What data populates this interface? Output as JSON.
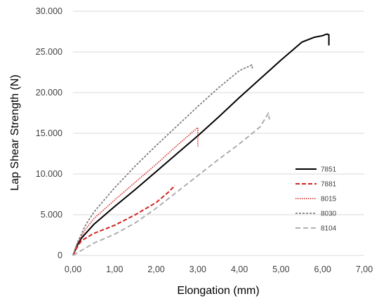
{
  "chart_data": {
    "type": "line",
    "title": "",
    "xlabel": "Elongation (mm)",
    "ylabel": "Lap Shear Strength (N)",
    "xlim": [
      0,
      7
    ],
    "ylim": [
      0,
      30000
    ],
    "x_ticks": [
      "0,00",
      "1,00",
      "2,00",
      "3,00",
      "4,00",
      "5,00",
      "6,00",
      "7,00"
    ],
    "y_ticks": [
      "0",
      "5.000",
      "10.000",
      "15.000",
      "20.000",
      "25.000",
      "30.000"
    ],
    "grid": "horizontal",
    "legend_position": "lower-right",
    "series": [
      {
        "name": "7851",
        "color": "#000000",
        "dash": "solid",
        "points": [
          [
            0,
            0
          ],
          [
            0.1,
            1200
          ],
          [
            0.2,
            2100
          ],
          [
            0.5,
            3800
          ],
          [
            1.0,
            6000
          ],
          [
            1.5,
            8100
          ],
          [
            2.0,
            10300
          ],
          [
            2.5,
            12500
          ],
          [
            3.0,
            14700
          ],
          [
            3.5,
            17000
          ],
          [
            4.0,
            19400
          ],
          [
            4.5,
            21700
          ],
          [
            5.0,
            24000
          ],
          [
            5.5,
            26200
          ],
          [
            5.8,
            26800
          ],
          [
            6.0,
            27000
          ],
          [
            6.1,
            27200
          ],
          [
            6.15,
            27100
          ],
          [
            6.15,
            25800
          ]
        ]
      },
      {
        "name": "7881",
        "color": "#d42020",
        "dash": "dashed",
        "points": [
          [
            0,
            0
          ],
          [
            0.1,
            1000
          ],
          [
            0.2,
            1800
          ],
          [
            0.5,
            2700
          ],
          [
            1.0,
            3700
          ],
          [
            1.5,
            5000
          ],
          [
            2.0,
            6500
          ],
          [
            2.3,
            7800
          ],
          [
            2.45,
            8600
          ]
        ]
      },
      {
        "name": "8015",
        "color": "#d42020",
        "dash": "dotted",
        "points": [
          [
            0,
            0
          ],
          [
            0.1,
            1400
          ],
          [
            0.3,
            3200
          ],
          [
            0.5,
            4500
          ],
          [
            1.0,
            6800
          ],
          [
            1.5,
            9000
          ],
          [
            2.0,
            11200
          ],
          [
            2.5,
            13500
          ],
          [
            2.95,
            15500
          ],
          [
            3.0,
            15700
          ],
          [
            3.0,
            13300
          ]
        ]
      },
      {
        "name": "8030",
        "color": "#7f7f7f",
        "dash": "short-dashed",
        "points": [
          [
            0,
            0
          ],
          [
            0.1,
            1500
          ],
          [
            0.3,
            3700
          ],
          [
            0.5,
            5300
          ],
          [
            1.0,
            8300
          ],
          [
            1.5,
            11000
          ],
          [
            2.0,
            13500
          ],
          [
            2.5,
            15900
          ],
          [
            3.0,
            18300
          ],
          [
            3.5,
            20600
          ],
          [
            4.0,
            22700
          ],
          [
            4.3,
            23400
          ],
          [
            4.32,
            22800
          ]
        ]
      },
      {
        "name": "8104",
        "color": "#a6a6a6",
        "dash": "long-dashed",
        "points": [
          [
            0,
            0
          ],
          [
            0.2,
            600
          ],
          [
            0.5,
            1500
          ],
          [
            1.0,
            2600
          ],
          [
            1.5,
            4000
          ],
          [
            2.0,
            5800
          ],
          [
            2.5,
            7800
          ],
          [
            3.0,
            9800
          ],
          [
            3.5,
            11800
          ],
          [
            4.0,
            13700
          ],
          [
            4.5,
            15800
          ],
          [
            4.7,
            17500
          ],
          [
            4.72,
            16700
          ]
        ]
      }
    ]
  }
}
